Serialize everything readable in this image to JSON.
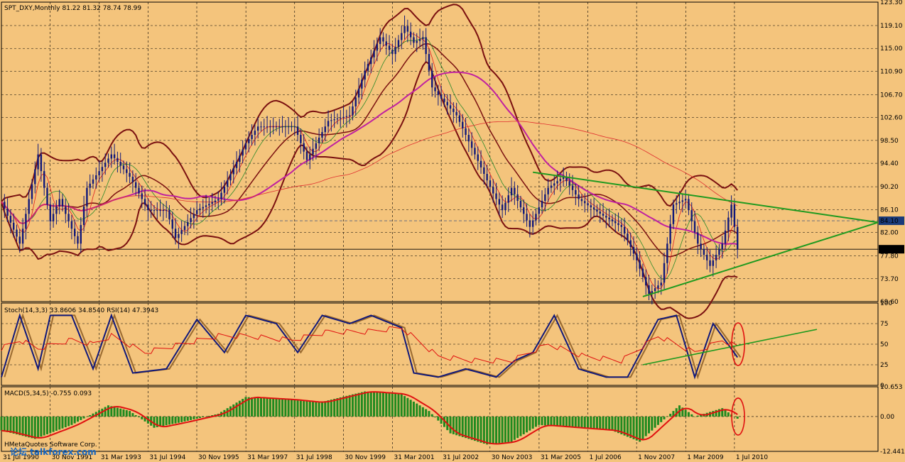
{
  "chart_data": [
    {
      "type": "candlestick",
      "header": "SPT_DXY,Monthly  81.22 81.32 78.74 78.99",
      "ylim": [
        69.6,
        123.3
      ],
      "y_ticks": [
        "123.30",
        "119.10",
        "115.00",
        "110.90",
        "106.70",
        "102.60",
        "98.50",
        "94.40",
        "90.20",
        "86.10",
        "82.00",
        "77.80",
        "73.70",
        "69.60"
      ],
      "y_tick_values": [
        123.3,
        119.1,
        115.0,
        110.9,
        106.7,
        102.6,
        98.5,
        94.4,
        90.2,
        86.1,
        82.0,
        77.8,
        73.7,
        69.6
      ],
      "current_price": "78.99",
      "current_price_value": 78.99,
      "highlight_level": "84.10",
      "highlight_level_value": 84.1,
      "close_points": [
        [
          "1990-07",
          87.5
        ],
        [
          "1991-01",
          80.0
        ],
        [
          "1991-07",
          96.0
        ],
        [
          "1991-11",
          84.0
        ],
        [
          "1992-02",
          88.0
        ],
        [
          "1992-08",
          80.0
        ],
        [
          "1992-11",
          90.0
        ],
        [
          "1993-03",
          93.0
        ],
        [
          "1993-07",
          96.0
        ],
        [
          "1994-01",
          92.0
        ],
        [
          "1994-07",
          86.0
        ],
        [
          "1995-01",
          86.0
        ],
        [
          "1995-04",
          81.0
        ],
        [
          "1995-11",
          86.0
        ],
        [
          "1996-06",
          88.0
        ],
        [
          "1997-03",
          98.0
        ],
        [
          "1997-07",
          101.0
        ],
        [
          "1998-01",
          101.0
        ],
        [
          "1998-07",
          101.0
        ],
        [
          "1998-11",
          95.0
        ],
        [
          "1999-06",
          102.0
        ],
        [
          "2000-01",
          103.0
        ],
        [
          "2000-06",
          111.0
        ],
        [
          "2000-11",
          117.0
        ],
        [
          "2001-03",
          114.0
        ],
        [
          "2001-07",
          119.0
        ],
        [
          "2001-10",
          116.0
        ],
        [
          "2002-01",
          117.0
        ],
        [
          "2002-04",
          108.0
        ],
        [
          "2002-07",
          106.0
        ],
        [
          "2002-12",
          103.0
        ],
        [
          "2003-06",
          96.0
        ],
        [
          "2003-12",
          89.0
        ],
        [
          "2004-03",
          86.0
        ],
        [
          "2004-06",
          90.0
        ],
        [
          "2004-12",
          83.0
        ],
        [
          "2005-06",
          90.0
        ],
        [
          "2005-11",
          92.0
        ],
        [
          "2006-04",
          88.0
        ],
        [
          "2006-12",
          85.0
        ],
        [
          "2007-06",
          83.0
        ],
        [
          "2007-11",
          77.0
        ],
        [
          "2008-03",
          71.0
        ],
        [
          "2008-07",
          73.0
        ],
        [
          "2008-11",
          87.0
        ],
        [
          "2009-03",
          88.0
        ],
        [
          "2009-07",
          80.0
        ],
        [
          "2009-11",
          76.0
        ],
        [
          "2010-03",
          80.0
        ],
        [
          "2010-06",
          87.0
        ],
        [
          "2010-07",
          83.0
        ],
        [
          "2010-08",
          79.0
        ]
      ],
      "trendlines": {
        "upper": [
          [
            "2005-01",
            92.8
          ],
          [
            "2014-06",
            83.8
          ]
        ],
        "lower": [
          [
            "2008-01",
            70.5
          ],
          [
            "2014-06",
            83.8
          ]
        ]
      },
      "x_labels": [
        "31 Jul 1990",
        "30 Nov 1991",
        "31 Mar 1993",
        "31 Jul 1994",
        "30 Nov 1995",
        "31 Mar 1997",
        "31 Jul 1998",
        "30 Nov 1999",
        "31 Mar 2001",
        "31 Jul 2002",
        "30 Nov 2003",
        "31 Mar 2005",
        "1 Jul 2006",
        "1 Nov 2007",
        "1 Mar 2009",
        "1 Jul 2010"
      ]
    },
    {
      "type": "line",
      "header": "Stoch(14,3,3) 33.8606 34.8540 RSI(14) 47.3943",
      "ylim": [
        0,
        100
      ],
      "y_ticks": [
        "100",
        "75",
        "50",
        "25",
        "0"
      ],
      "y_tick_values": [
        100,
        75,
        50,
        25,
        0
      ],
      "series": [
        {
          "name": "Stoch(14,3,3)",
          "values": [
            [
              "1990-07",
              10
            ],
            [
              "1991-01",
              85
            ],
            [
              "1991-07",
              20
            ],
            [
              "1991-11",
              85
            ],
            [
              "1992-06",
              85
            ],
            [
              "1993-01",
              20
            ],
            [
              "1993-07",
              85
            ],
            [
              "1994-02",
              15
            ],
            [
              "1995-01",
              20
            ],
            [
              "1995-11",
              80
            ],
            [
              "1996-08",
              40
            ],
            [
              "1997-03",
              85
            ],
            [
              "1998-01",
              75
            ],
            [
              "1998-08",
              40
            ],
            [
              "1999-04",
              85
            ],
            [
              "2000-01",
              75
            ],
            [
              "2000-08",
              85
            ],
            [
              "2001-06",
              70
            ],
            [
              "2001-10",
              15
            ],
            [
              "2002-06",
              10
            ],
            [
              "2003-03",
              20
            ],
            [
              "2004-01",
              10
            ],
            [
              "2004-07",
              30
            ],
            [
              "2005-01",
              40
            ],
            [
              "2005-08",
              85
            ],
            [
              "2006-04",
              20
            ],
            [
              "2007-01",
              10
            ],
            [
              "2007-08",
              10
            ],
            [
              "2008-06",
              80
            ],
            [
              "2008-12",
              85
            ],
            [
              "2009-06",
              10
            ],
            [
              "2009-12",
              75
            ],
            [
              "2010-08",
              34
            ]
          ]
        },
        {
          "name": "RSI(14)",
          "values": [
            [
              "1990-07",
              45
            ],
            [
              "1991-01",
              55
            ],
            [
              "1991-07",
              45
            ],
            [
              "1992-06",
              55
            ],
            [
              "1993-01",
              50
            ],
            [
              "1993-07",
              60
            ],
            [
              "1994-06",
              40
            ],
            [
              "1995-06",
              50
            ],
            [
              "1996-06",
              60
            ],
            [
              "1997-03",
              60
            ],
            [
              "1998-06",
              55
            ],
            [
              "1999-06",
              65
            ],
            [
              "2000-06",
              65
            ],
            [
              "2001-06",
              70
            ],
            [
              "2002-06",
              35
            ],
            [
              "2003-06",
              30
            ],
            [
              "2004-06",
              30
            ],
            [
              "2005-06",
              50
            ],
            [
              "2006-06",
              35
            ],
            [
              "2007-06",
              30
            ],
            [
              "2008-06",
              60
            ],
            [
              "2009-06",
              40
            ],
            [
              "2010-03",
              55
            ],
            [
              "2010-08",
              47
            ]
          ]
        }
      ],
      "trendline": [
        [
          "2008-01",
          25
        ],
        [
          "2012-10",
          68
        ]
      ]
    },
    {
      "type": "bar",
      "header": "MACD(5,34,5) -0.755 0.093",
      "ylim": [
        -12.441,
        10.653
      ],
      "y_ticks": [
        "10.653",
        "0.00",
        "-12.441"
      ],
      "y_tick_values": [
        10.653,
        0.0,
        -12.441
      ],
      "series": [
        {
          "name": "MACD(5,34,5)",
          "values": [
            [
              "1990-07",
              -5
            ],
            [
              "1991-06",
              -8
            ],
            [
              "1992-06",
              -3
            ],
            [
              "1993-06",
              4
            ],
            [
              "1994-01",
              2
            ],
            [
              "1994-09",
              -4
            ],
            [
              "1995-06",
              -2
            ],
            [
              "1996-06",
              1
            ],
            [
              "1997-03",
              7
            ],
            [
              "1998-06",
              6
            ],
            [
              "1999-03",
              5
            ],
            [
              "2000-06",
              9
            ],
            [
              "2001-06",
              8
            ],
            [
              "2002-03",
              2
            ],
            [
              "2002-10",
              -6
            ],
            [
              "2003-10",
              -10
            ],
            [
              "2004-06",
              -9
            ],
            [
              "2005-03",
              -3
            ],
            [
              "2006-03",
              -4
            ],
            [
              "2007-03",
              -5
            ],
            [
              "2007-12",
              -9
            ],
            [
              "2008-06",
              -3
            ],
            [
              "2009-01",
              4
            ],
            [
              "2009-06",
              0
            ],
            [
              "2010-03",
              3
            ],
            [
              "2010-08",
              -0.755
            ]
          ]
        }
      ]
    }
  ],
  "watermark": "HMetaQuotes Software Corp.",
  "watermark_logo": "论坛 talkforex.com"
}
